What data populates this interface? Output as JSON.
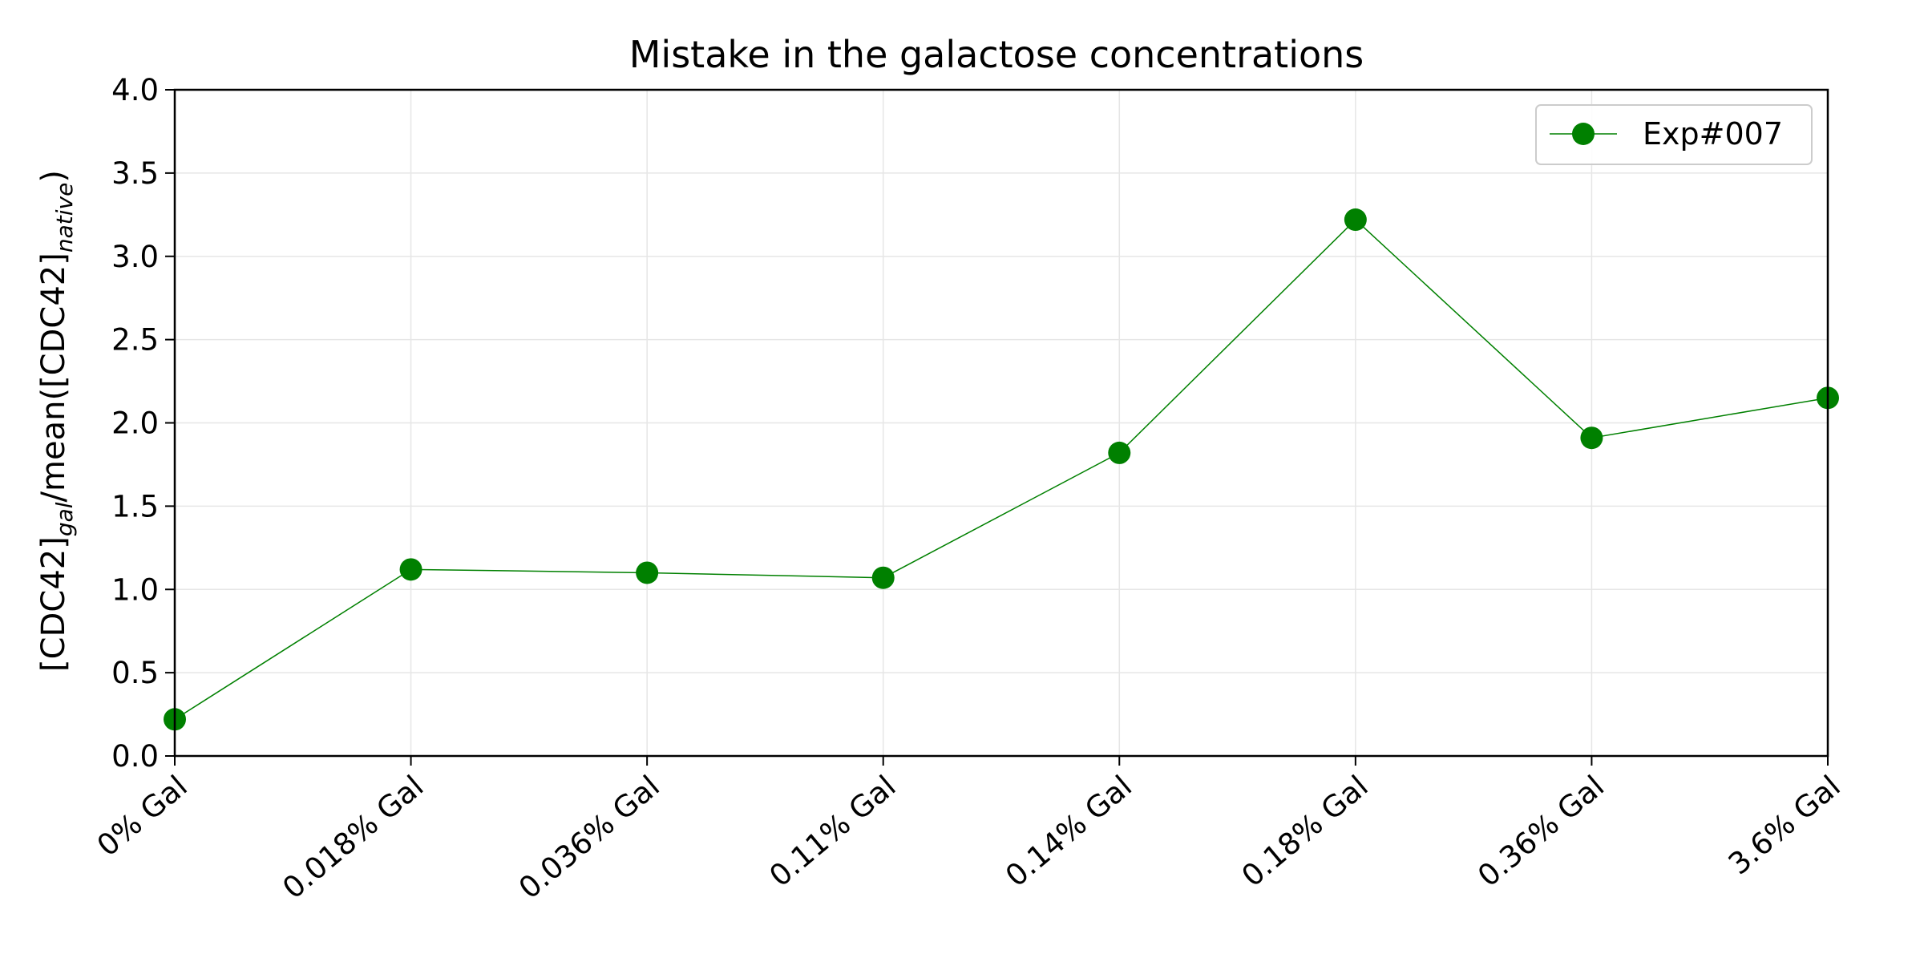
{
  "chart_data": {
    "type": "line",
    "title": "Mistake in the galactose concentrations",
    "xlabel": "",
    "ylabel": {
      "prefix": "[CDC42]",
      "sub1": "gal",
      "middle": "/mean([CDC42]",
      "sub2": "native",
      "suffix": ")"
    },
    "categories": [
      "0% Gal",
      "0.018% Gal",
      "0.036% Gal",
      "0.11% Gal",
      "0.14% Gal",
      "0.18% Gal",
      "0.36% Gal",
      "3.6% Gal"
    ],
    "series": [
      {
        "name": "Exp#007",
        "color": "#008000",
        "values": [
          0.22,
          1.12,
          1.1,
          1.07,
          1.82,
          3.22,
          1.91,
          2.15
        ]
      }
    ],
    "ylim": [
      0.0,
      4.0
    ],
    "yticks": [
      "0.0",
      "0.5",
      "1.0",
      "1.5",
      "2.0",
      "2.5",
      "3.0",
      "3.5",
      "4.0"
    ],
    "ytick_values": [
      0.0,
      0.5,
      1.0,
      1.5,
      2.0,
      2.5,
      3.0,
      3.5,
      4.0
    ],
    "grid": true,
    "legend_position": "top-right"
  }
}
